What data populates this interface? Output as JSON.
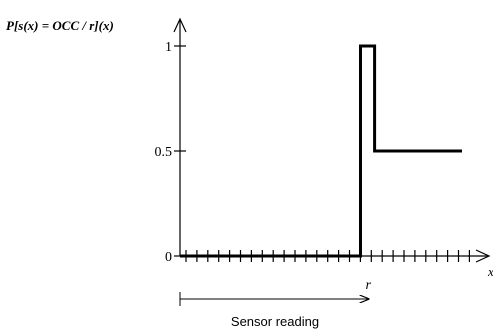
{
  "chart_data": {
    "type": "line",
    "title": "P[s(x) = OCC / r](x)",
    "xlabel": "x",
    "ylabel": "",
    "x_marker_label": "r",
    "x_marker": 0.64,
    "xlim": [
      0,
      1
    ],
    "ylim": [
      0,
      1
    ],
    "y_ticks": [
      {
        "value": 0,
        "label": "0"
      },
      {
        "value": 0.5,
        "label": "0.5"
      },
      {
        "value": 1,
        "label": "1"
      }
    ],
    "x_tick_count": 27,
    "grid": false,
    "series": [
      {
        "x": [
          0,
          0.64,
          0.64,
          0.69,
          0.69,
          1.0
        ],
        "y": [
          0,
          0,
          1,
          1,
          0.5,
          0.5
        ]
      }
    ],
    "annotations": [
      {
        "type": "arrow",
        "from_x": 0,
        "to_x": 0.64,
        "label": "Sensor reading"
      }
    ]
  }
}
